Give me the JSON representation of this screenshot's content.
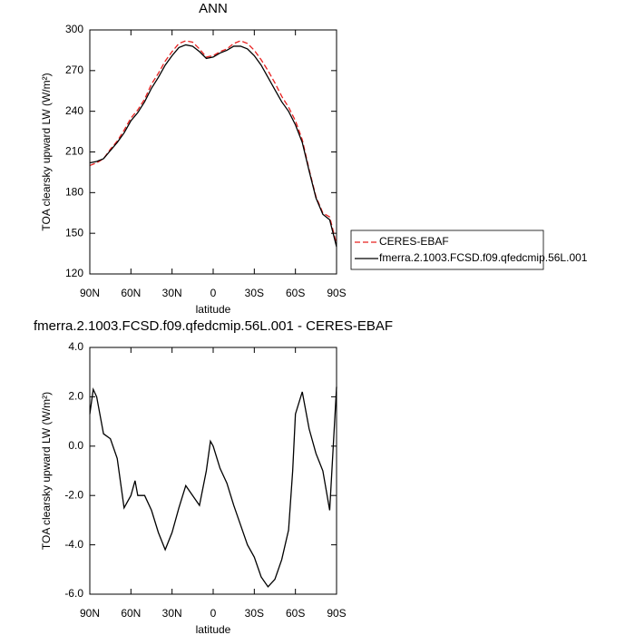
{
  "chart_data": [
    {
      "type": "line",
      "title": "ANN",
      "xlabel": "latitude",
      "ylabel": "TOA clearsky upward LW (W/m²)",
      "x": [
        90,
        85,
        80,
        75,
        70,
        65,
        60,
        55,
        50,
        45,
        40,
        35,
        30,
        25,
        20,
        15,
        10,
        5,
        0,
        -5,
        -10,
        -15,
        -20,
        -25,
        -30,
        -35,
        -40,
        -45,
        -50,
        -55,
        -60,
        -65,
        -70,
        -75,
        -80,
        -85,
        -90
      ],
      "series": [
        {
          "name": "CERES-EBAF",
          "color": "#e8201f",
          "dashed": true,
          "values": [
            200,
            202,
            205,
            212,
            218,
            226,
            235,
            241,
            249,
            260,
            268,
            277,
            284,
            290,
            292,
            291,
            286,
            280,
            281,
            284,
            286,
            290,
            292,
            290,
            285,
            278,
            270,
            261,
            251,
            243,
            233,
            219,
            197,
            177,
            165,
            162,
            142
          ]
        },
        {
          "name": "fmerra.2.1003.FCSD.f09.qfedcmip.56L.001",
          "color": "#000000",
          "dashed": false,
          "values": [
            202,
            203,
            205,
            211,
            217,
            224,
            233,
            239,
            247,
            257,
            265,
            274,
            281,
            287,
            289,
            288,
            284,
            279,
            280,
            283,
            285,
            288,
            288,
            286,
            281,
            274,
            265,
            256,
            247,
            240,
            230,
            217,
            196,
            176,
            164,
            160,
            140
          ]
        }
      ],
      "xlim": [
        90,
        -90
      ],
      "xticks": [
        {
          "value": 90,
          "label": "90N"
        },
        {
          "value": 60,
          "label": "60N"
        },
        {
          "value": 30,
          "label": "30N"
        },
        0,
        {
          "value": -30,
          "label": "30S"
        },
        {
          "value": -60,
          "label": "60S"
        },
        {
          "value": -90,
          "label": "90S"
        }
      ],
      "ylim": [
        120,
        300
      ],
      "yticks": [
        120,
        150,
        180,
        210,
        240,
        270,
        300
      ],
      "legend": "right"
    },
    {
      "type": "line",
      "title": "fmerra.2.1003.FCSD.f09.qfedcmip.56L.001 - CERES-EBAF",
      "xlabel": "latitude",
      "ylabel": "TOA clearsky upward LW (W/m²)",
      "x": [
        90,
        87.5,
        85,
        80,
        75,
        70,
        65,
        60,
        57,
        55,
        50,
        45,
        40,
        35,
        30,
        25,
        20,
        15,
        10,
        5,
        2,
        0,
        -5,
        -10,
        -15,
        -20,
        -25,
        -30,
        -35,
        -40,
        -45,
        -50,
        -55,
        -58,
        -60,
        -65,
        -70,
        -75,
        -80,
        -85,
        -90
      ],
      "values": [
        1.3,
        2.3,
        2.0,
        0.5,
        0.3,
        -0.5,
        -2.5,
        -2.0,
        -1.4,
        -2.0,
        -2.0,
        -2.6,
        -3.5,
        -4.2,
        -3.5,
        -2.5,
        -1.6,
        -2.0,
        -2.4,
        -1.0,
        0.2,
        0.0,
        -0.9,
        -1.5,
        -2.4,
        -3.2,
        -4.0,
        -4.5,
        -5.3,
        -5.7,
        -5.4,
        -4.6,
        -3.4,
        -1.0,
        1.3,
        2.2,
        0.7,
        -0.3,
        -1.0,
        -2.6,
        2.4
      ],
      "color": "#000000",
      "xlim": [
        90,
        -90
      ],
      "xticks": [
        {
          "value": 90,
          "label": "90N"
        },
        {
          "value": 60,
          "label": "60N"
        },
        {
          "value": 30,
          "label": "30N"
        },
        0,
        {
          "value": -30,
          "label": "30S"
        },
        {
          "value": -60,
          "label": "60S"
        },
        {
          "value": -90,
          "label": "90S"
        }
      ],
      "ylim": [
        -6,
        4
      ],
      "yticks": [
        {
          "value": -6,
          "label": "-6.0"
        },
        {
          "value": -4,
          "label": "-4.0"
        },
        {
          "value": -2,
          "label": "-2.0"
        },
        {
          "value": 0,
          "label": "0.0"
        },
        {
          "value": 2,
          "label": "2.0"
        },
        {
          "value": 4,
          "label": "4.0"
        }
      ]
    }
  ]
}
